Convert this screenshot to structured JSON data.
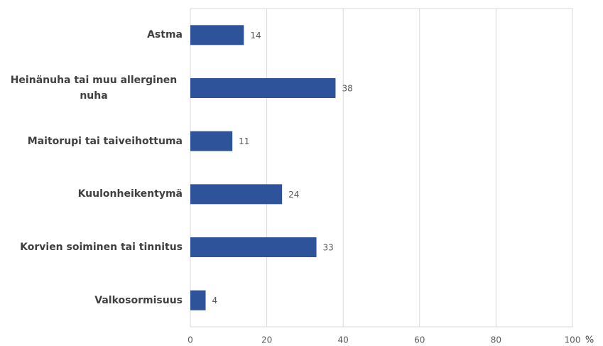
{
  "chart_data": {
    "type": "bar",
    "orientation": "horizontal",
    "categories": [
      "Astma",
      "Heinänuha tai muu allerginen nuha",
      "Maitorupi tai taiveihottuma",
      "Kuulonheikentymä",
      "Korvien soiminen tai tinnitus",
      "Valkosormisuus"
    ],
    "values": [
      14,
      38,
      11,
      24,
      33,
      4
    ],
    "color": "#2f539b",
    "xlim": [
      0,
      100
    ],
    "xticks": [
      0,
      20,
      40,
      60,
      80,
      100
    ],
    "xlabel": "%",
    "grid": true
  }
}
